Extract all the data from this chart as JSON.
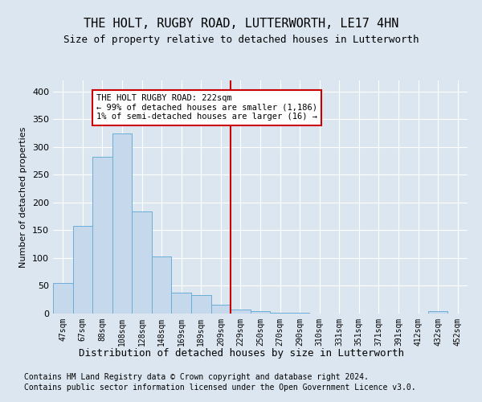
{
  "title": "THE HOLT, RUGBY ROAD, LUTTERWORTH, LE17 4HN",
  "subtitle": "Size of property relative to detached houses in Lutterworth",
  "xlabel": "Distribution of detached houses by size in Lutterworth",
  "ylabel": "Number of detached properties",
  "categories": [
    "47sqm",
    "67sqm",
    "88sqm",
    "108sqm",
    "128sqm",
    "148sqm",
    "169sqm",
    "189sqm",
    "209sqm",
    "229sqm",
    "250sqm",
    "270sqm",
    "290sqm",
    "310sqm",
    "331sqm",
    "351sqm",
    "371sqm",
    "391sqm",
    "412sqm",
    "432sqm",
    "452sqm"
  ],
  "values": [
    55,
    158,
    283,
    325,
    184,
    103,
    37,
    33,
    16,
    7,
    4,
    2,
    1,
    0,
    0,
    0,
    0,
    0,
    0,
    4,
    0
  ],
  "bar_color": "#c5d8ec",
  "bar_edge_color": "#6aaed6",
  "background_color": "#dce6f0",
  "fig_background_color": "#dce6f0",
  "grid_color": "#ffffff",
  "vline_color": "#cc0000",
  "annotation_text": "THE HOLT RUGBY ROAD: 222sqm\n← 99% of detached houses are smaller (1,186)\n1% of semi-detached houses are larger (16) →",
  "annotation_box_color": "#ffffff",
  "annotation_box_edge_color": "#cc0000",
  "ylim": [
    0,
    420
  ],
  "yticks": [
    0,
    50,
    100,
    150,
    200,
    250,
    300,
    350,
    400
  ],
  "footer1": "Contains HM Land Registry data © Crown copyright and database right 2024.",
  "footer2": "Contains public sector information licensed under the Open Government Licence v3.0."
}
